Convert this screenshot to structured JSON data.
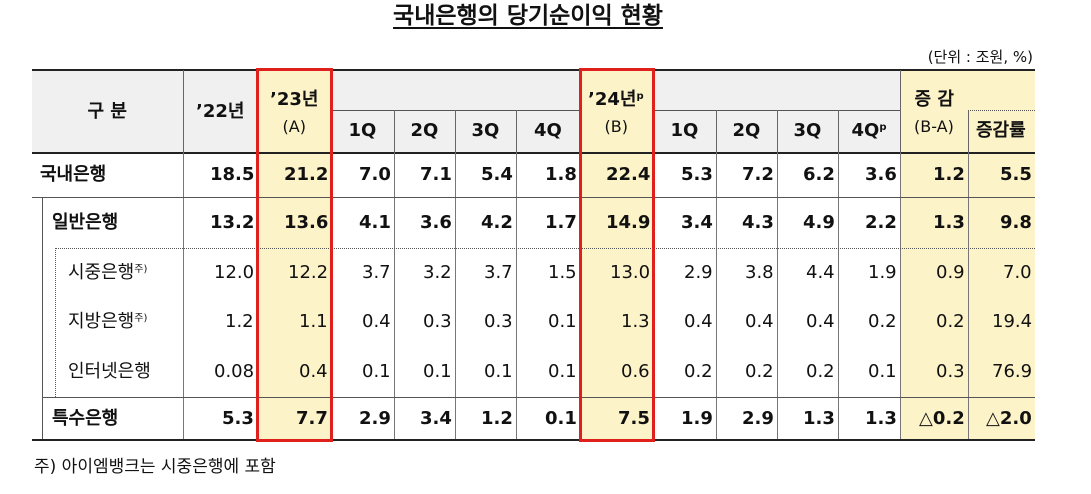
{
  "title": "국내은행의 당기순이익 현황",
  "unit": "(단위 : 조원, %)",
  "table": {
    "header": {
      "category": "구 분",
      "y22": "’22년",
      "y23": "’23년",
      "y23_note": "(A)",
      "q23": [
        "1Q",
        "2Q",
        "3Q",
        "4Q"
      ],
      "y24": "’24년",
      "y24_sup": "p",
      "y24_note": "(B)",
      "q24": [
        "1Q",
        "2Q",
        "3Q",
        "4Q"
      ],
      "q24_sup": "p",
      "change": "증 감",
      "change_note": "(B-A)",
      "rate": "증감률"
    },
    "rows": [
      {
        "label": "국내은행",
        "values": [
          "18.5",
          "21.2",
          "7.0",
          "7.1",
          "5.4",
          "1.8",
          "22.4",
          "5.3",
          "7.2",
          "6.2",
          "3.6",
          "1.2",
          "5.5"
        ]
      },
      {
        "label": "일반은행",
        "values": [
          "13.2",
          "13.6",
          "4.1",
          "3.6",
          "4.2",
          "1.7",
          "14.9",
          "3.4",
          "4.3",
          "4.9",
          "2.2",
          "1.3",
          "9.8"
        ]
      },
      {
        "label": "시중은행",
        "note": "주)",
        "values": [
          "12.0",
          "12.2",
          "3.7",
          "3.2",
          "3.7",
          "1.5",
          "13.0",
          "2.9",
          "3.8",
          "4.4",
          "1.9",
          "0.9",
          "7.0"
        ]
      },
      {
        "label": "지방은행",
        "note": "주)",
        "values": [
          "1.2",
          "1.1",
          "0.4",
          "0.3",
          "0.3",
          "0.1",
          "1.3",
          "0.4",
          "0.4",
          "0.4",
          "0.2",
          "0.2",
          "19.4"
        ]
      },
      {
        "label": "인터넷은행",
        "values": [
          "0.08",
          "0.4",
          "0.1",
          "0.1",
          "0.1",
          "0.1",
          "0.6",
          "0.2",
          "0.2",
          "0.2",
          "0.1",
          "0.3",
          "76.9"
        ]
      },
      {
        "label": "특수은행",
        "values": [
          "5.3",
          "7.7",
          "2.9",
          "3.4",
          "1.2",
          "0.1",
          "7.5",
          "1.9",
          "2.9",
          "1.3",
          "1.3",
          "△0.2",
          "△2.0"
        ]
      }
    ]
  },
  "footnote": "주) 아이엠뱅크는 시중은행에 포함"
}
